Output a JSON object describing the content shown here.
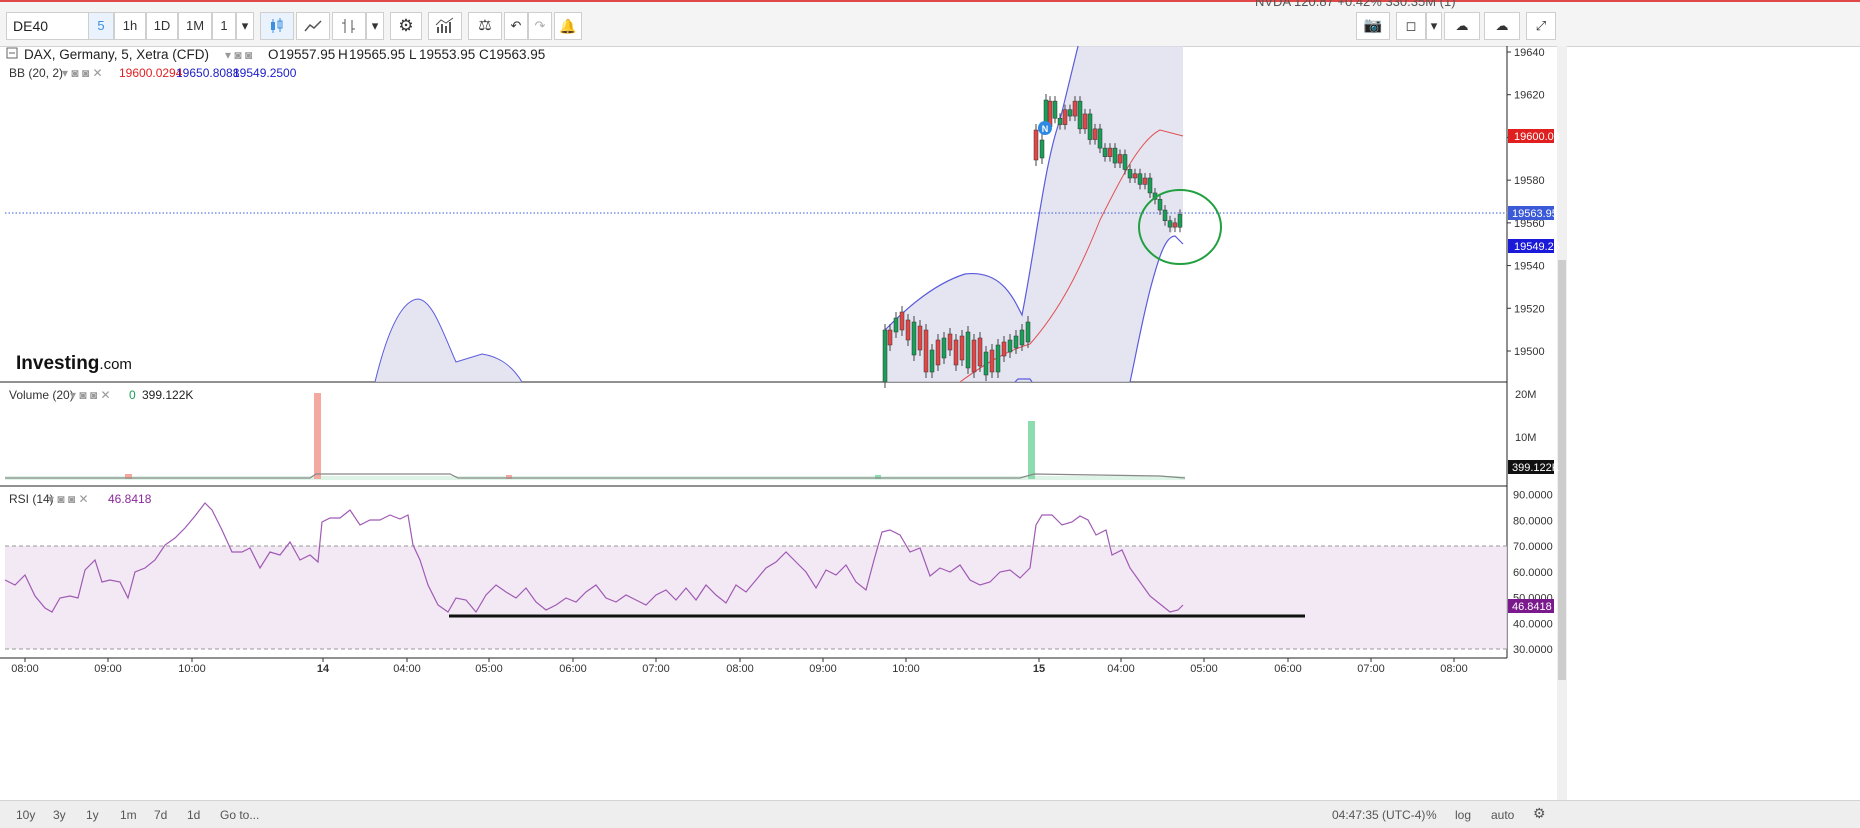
{
  "toolbar": {
    "symbol": "DE40",
    "intervals": [
      "5",
      "1h",
      "1D",
      "1M"
    ],
    "selected_interval": "5",
    "multiplier": "1",
    "ticker_strip": "NVDA 120.87 +0.42% 330.35M (1)"
  },
  "main_legend": {
    "instrument": "DAX, Germany, 5, Xetra (CFD)",
    "o_label": "O",
    "o_value": "19557.95",
    "h_label": "H",
    "h_value": "19565.95",
    "l_label": "L",
    "l_value": "19553.95",
    "c_label": "C",
    "c_value": "19563.95",
    "bb_label": "BB (20, 2)",
    "bb_mid": "19600.0294",
    "bb_upper": "19650.8088",
    "bb_lower": "19549.2500"
  },
  "volume_legend": {
    "label": "Volume (20)",
    "zero": "0",
    "value": "399.122K"
  },
  "rsi_legend": {
    "label": "RSI (14)",
    "value": "46.8418"
  },
  "watermark": {
    "brand": "Investing",
    "suffix": ".com"
  },
  "price_tags": {
    "mid": "19600.03",
    "last": "19563.95",
    "lower": "19549.25",
    "volume": "399.122K",
    "rsi": "46.8418"
  },
  "time_labels": [
    "08:00",
    "09:00",
    "10:00",
    "14",
    "04:00",
    "05:00",
    "06:00",
    "07:00",
    "08:00",
    "09:00",
    "10:00",
    "15",
    "04:00",
    "05:00",
    "06:00",
    "07:00",
    "08:00"
  ],
  "bottom_bar": {
    "ranges": [
      "10y",
      "3y",
      "1y",
      "1m",
      "7d",
      "1d"
    ],
    "goto": "Go to...",
    "clock": "04:47:35 (UTC-4)",
    "pct": "%",
    "log": "log",
    "auto": "auto"
  },
  "colors": {
    "up": "#1a9e58",
    "down": "#e04848",
    "bb_upper_lower": "#5b5bdc",
    "bb_mid": "#e05050",
    "rsi": "#a05ab4"
  },
  "chart_data": [
    {
      "type": "candlestick",
      "title": "DAX, Germany, 5, Xetra (CFD)",
      "y_ticks": [
        19500,
        19520,
        19540,
        19560,
        19580,
        19600,
        19620,
        19640
      ],
      "ylim": [
        19484,
        19650
      ],
      "candles": [
        {
          "x": 1050,
          "o": 19617,
          "c": 19605
        },
        {
          "x": 1055,
          "o": 19609,
          "c": 19617
        },
        {
          "x": 1060,
          "o": 19606,
          "c": 19609
        },
        {
          "x": 1065,
          "o": 19613,
          "c": 19606
        },
        {
          "x": 1070,
          "o": 19610,
          "c": 19613
        },
        {
          "x": 1075,
          "o": 19617,
          "c": 19610
        },
        {
          "x": 1080,
          "o": 19604,
          "c": 19617
        },
        {
          "x": 1085,
          "o": 19611,
          "c": 19604
        },
        {
          "x": 1090,
          "o": 19599,
          "c": 19611
        },
        {
          "x": 1095,
          "o": 19604,
          "c": 19599
        },
        {
          "x": 1100,
          "o": 19595,
          "c": 19604
        },
        {
          "x": 1105,
          "o": 19591,
          "c": 19595
        },
        {
          "x": 1110,
          "o": 19595,
          "c": 19591
        },
        {
          "x": 1115,
          "o": 19588,
          "c": 19595
        },
        {
          "x": 1120,
          "o": 19592,
          "c": 19588
        },
        {
          "x": 1125,
          "o": 19585,
          "c": 19592
        },
        {
          "x": 1130,
          "o": 19581,
          "c": 19585
        },
        {
          "x": 1135,
          "o": 19583,
          "c": 19581
        },
        {
          "x": 1140,
          "o": 19578,
          "c": 19583
        },
        {
          "x": 1145,
          "o": 19581,
          "c": 19578
        },
        {
          "x": 1150,
          "o": 19574,
          "c": 19581
        },
        {
          "x": 1155,
          "o": 19571,
          "c": 19574
        },
        {
          "x": 1160,
          "o": 19566,
          "c": 19571
        },
        {
          "x": 1165,
          "o": 19561,
          "c": 19566
        },
        {
          "x": 1170,
          "o": 19558,
          "c": 19561
        },
        {
          "x": 1175,
          "o": 19560,
          "c": 19558
        },
        {
          "x": 1180,
          "o": 19557.95,
          "c": 19563.95
        }
      ]
    },
    {
      "type": "bar",
      "title": "Volume (20)",
      "y_ticks": [
        "10M",
        "20M"
      ],
      "ylim": [
        0,
        22000000
      ],
      "last_value": 399122
    },
    {
      "type": "line",
      "title": "RSI (14)",
      "y_ticks": [
        30,
        40,
        50,
        60,
        70,
        80,
        90
      ],
      "ylim": [
        28,
        92
      ],
      "overbought": 70,
      "oversold": 30,
      "last_value": 46.8418
    }
  ]
}
